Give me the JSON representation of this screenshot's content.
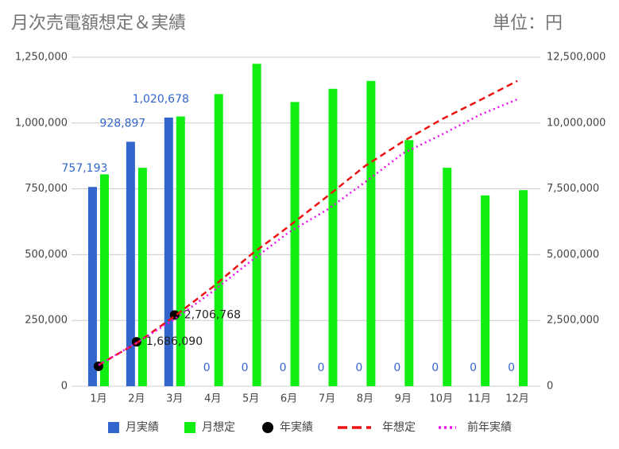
{
  "chart_data": {
    "type": "bar",
    "title": "月次売電額想定＆実績",
    "subtitle": "単位：円",
    "categories": [
      "1月",
      "2月",
      "3月",
      "4月",
      "5月",
      "6月",
      "7月",
      "8月",
      "9月",
      "10月",
      "11月",
      "12月"
    ],
    "ylim": [
      0,
      1250000
    ],
    "yticks": [
      0,
      {
        "value": 250000,
        "label": "250,000"
      },
      {
        "value": 500000,
        "label": "500,000"
      },
      {
        "value": 750000,
        "label": "750,000"
      },
      {
        "value": 1000000,
        "label": "1,000,000"
      },
      {
        "value": 1250000,
        "label": "1,250,000"
      }
    ],
    "y2lim": [
      0,
      12500000
    ],
    "y2ticks": [
      0,
      {
        "value": 2500000,
        "label": "2,500,000"
      },
      {
        "value": 5000000,
        "label": "5,000,000"
      },
      {
        "value": 7500000,
        "label": "7,500,000"
      },
      {
        "value": 10000000,
        "label": "10,000,000"
      },
      {
        "value": 12500000,
        "label": "12,500,000"
      }
    ],
    "grid": true,
    "legend": "bottom",
    "series": [
      {
        "name": "月実績",
        "type": "bar",
        "color": "#3366cc",
        "values": [
          757193,
          928897,
          1020678,
          0,
          0,
          0,
          0,
          0,
          0,
          0,
          0,
          0
        ],
        "value_labels": [
          "757,193",
          "928,897",
          "1,020,678",
          "0",
          "0",
          "0",
          "0",
          "0",
          "0",
          "0",
          "0",
          "0"
        ]
      },
      {
        "name": "月想定",
        "type": "bar",
        "color": "#11ee11",
        "values": [
          805000,
          830000,
          1025000,
          1110000,
          1225000,
          1080000,
          1130000,
          1160000,
          935000,
          830000,
          725000,
          745000
        ]
      },
      {
        "name": "年実績",
        "type": "scatter",
        "axis": "y2",
        "color": "#000000",
        "values": [
          757193,
          1686090,
          2706768
        ],
        "value_labels": [
          null,
          "1,686,090",
          "2,706,768"
        ]
      },
      {
        "name": "年想定",
        "type": "line",
        "axis": "y2",
        "color": "#ee1111",
        "dash": "dashed",
        "values": [
          805000,
          1635000,
          2660000,
          3770000,
          4995000,
          6075000,
          7205000,
          8365000,
          9300000,
          10130000,
          10855000,
          11600000
        ]
      },
      {
        "name": "前年実績",
        "type": "line",
        "axis": "y2",
        "color": "#ee11ee",
        "dash": "dotted",
        "values": [
          800000,
          1650000,
          2550000,
          3600000,
          4750000,
          5850000,
          6700000,
          7750000,
          8850000,
          9550000,
          10300000,
          10900000
        ]
      }
    ]
  }
}
